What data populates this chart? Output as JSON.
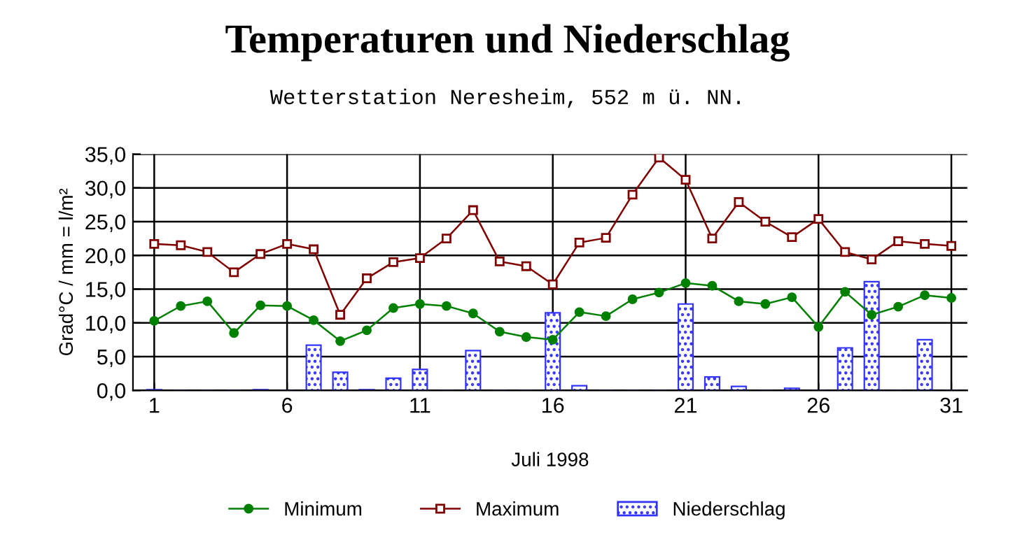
{
  "chart_data": {
    "type": "line",
    "title": "Temperaturen und Niederschlag",
    "subtitle": "Wetterstation Neresheim, 552 m ü. NN.",
    "xlabel": "Juli 1998",
    "ylabel": "Grad°C / mm = l/m²",
    "x": [
      1,
      2,
      3,
      4,
      5,
      6,
      7,
      8,
      9,
      10,
      11,
      12,
      13,
      14,
      15,
      16,
      17,
      18,
      19,
      20,
      21,
      22,
      23,
      24,
      25,
      26,
      27,
      28,
      29,
      30,
      31
    ],
    "series": [
      {
        "name": "Minimum",
        "marker": "circle",
        "color": "#008000",
        "values": [
          10.3,
          12.5,
          13.2,
          8.5,
          12.6,
          12.5,
          10.4,
          7.3,
          8.9,
          12.2,
          12.8,
          12.5,
          11.4,
          8.7,
          7.9,
          7.5,
          11.6,
          11.0,
          13.5,
          14.5,
          15.9,
          15.5,
          13.2,
          12.8,
          13.8,
          9.4,
          14.6,
          11.2,
          12.4,
          14.1,
          13.7
        ]
      },
      {
        "name": "Maximum",
        "marker": "square",
        "color": "#800000",
        "values": [
          21.7,
          21.5,
          20.5,
          17.5,
          20.2,
          21.7,
          20.9,
          11.2,
          16.6,
          19.0,
          19.6,
          22.5,
          26.7,
          19.1,
          18.4,
          15.7,
          21.9,
          22.6,
          29.0,
          34.5,
          31.2,
          22.5,
          27.9,
          25.0,
          22.7,
          25.4,
          20.5,
          19.4,
          22.1,
          21.7,
          21.4
        ]
      },
      {
        "name": "Niederschlag",
        "type": "bar",
        "color": "#3333ff",
        "values": [
          0.1,
          0,
          0,
          0,
          0.1,
          0,
          6.7,
          2.7,
          0.1,
          1.8,
          3.1,
          0,
          5.9,
          0,
          0,
          11.5,
          0.7,
          0,
          0,
          0,
          12.8,
          2.0,
          0.6,
          0,
          0.3,
          0,
          6.3,
          16.1,
          0,
          7.5,
          0
        ]
      }
    ],
    "xlim": [
      0.2,
      31.6
    ],
    "xticks": [
      1,
      6,
      11,
      16,
      21,
      26,
      31
    ],
    "ylim": [
      0,
      35
    ],
    "yticks": [
      {
        "value": 0,
        "label": "0,0"
      },
      {
        "value": 5,
        "label": "5,0"
      },
      {
        "value": 10,
        "label": "10,0"
      },
      {
        "value": 15,
        "label": "15,0"
      },
      {
        "value": 20,
        "label": "20,0"
      },
      {
        "value": 25,
        "label": "25,0"
      },
      {
        "value": 30,
        "label": "30,0"
      },
      {
        "value": 35,
        "label": "35,0"
      }
    ],
    "grid": true,
    "legend": "bottom"
  }
}
